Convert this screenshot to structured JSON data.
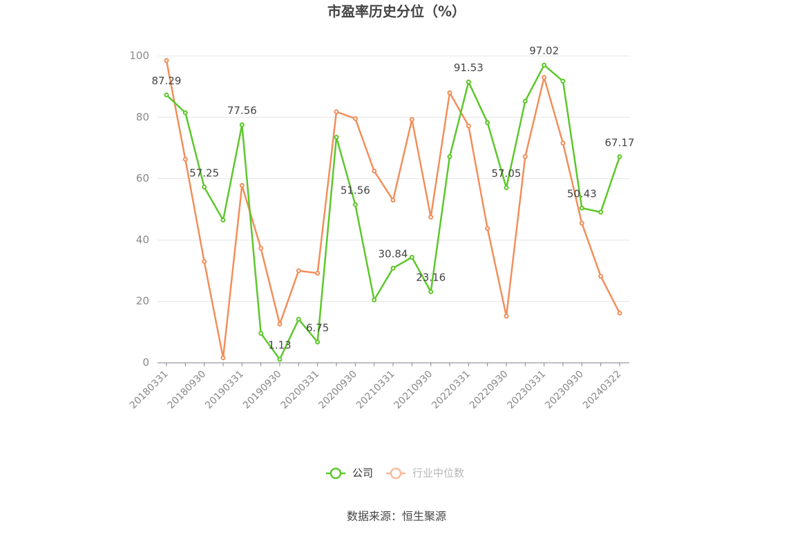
{
  "chart_data": {
    "type": "line",
    "title": "市盈率历史分位（%）",
    "source": "数据来源：恒生聚源",
    "categories": [
      "20180331",
      null,
      "20180930",
      null,
      "20190331",
      null,
      "20190930",
      null,
      "20200331",
      null,
      "20200930",
      null,
      "20210331",
      null,
      "20210930",
      null,
      "20220331",
      null,
      "20220930",
      null,
      "20230331",
      null,
      "20230930",
      null,
      "20240322"
    ],
    "series": [
      {
        "name": "公司",
        "color": "#5cc72a",
        "values": [
          87.29,
          81.5,
          57.25,
          46.5,
          77.56,
          9.6,
          1.13,
          14.2,
          6.75,
          73.5,
          51.56,
          20.5,
          30.84,
          34.4,
          23.16,
          67.2,
          91.53,
          78.3,
          57.05,
          85.3,
          97.02,
          91.8,
          50.43,
          49.1,
          67.17
        ],
        "value_labels": [
          "87.29",
          null,
          "57.25",
          null,
          "77.56",
          null,
          "1.13",
          null,
          "6.75",
          null,
          "51.56",
          null,
          "30.84",
          null,
          "23.16",
          null,
          "91.53",
          null,
          "57.05",
          null,
          "97.02",
          null,
          "50.43",
          null,
          "67.17"
        ]
      },
      {
        "name": "行业中位数",
        "color": "#f28e5a",
        "values": [
          98.5,
          66.3,
          33,
          1.6,
          57.8,
          37.3,
          12.6,
          30,
          29.2,
          81.8,
          79.6,
          62.5,
          53,
          79.3,
          47.5,
          88,
          77.2,
          43.8,
          15.2,
          67.2,
          93,
          71.6,
          45.5,
          28.2,
          16.2
        ]
      }
    ],
    "ylim": [
      0,
      100
    ],
    "yticks": [
      0,
      20,
      40,
      60,
      80,
      100
    ],
    "grid": true,
    "legend": "bottom"
  }
}
